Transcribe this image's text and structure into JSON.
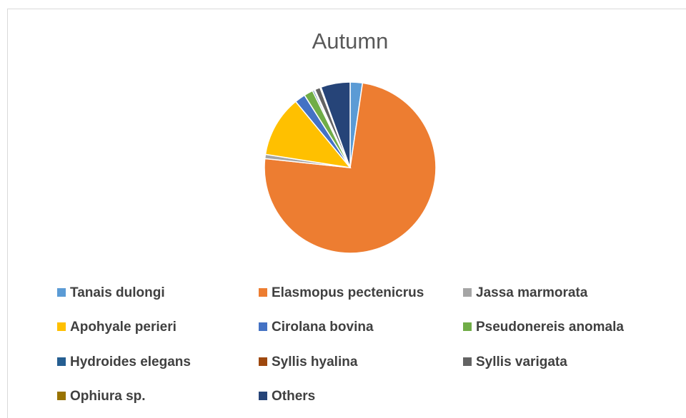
{
  "chart_data": {
    "type": "pie",
    "title": "Autumn",
    "categories": [
      "Tanais dulongi",
      "Elasmopus pectenicrus",
      "Jassa marmorata",
      "Apohyale perieri",
      "Cirolana bovina",
      "Pseudonereis anomala",
      "Hydroides elegans",
      "Syllis hyalina",
      "Syllis varigata",
      "Ophiura sp.",
      "Others"
    ],
    "values": [
      2.3,
      74,
      0.8,
      11.5,
      2,
      1.7,
      0.3,
      0.2,
      1,
      0.2,
      5.5
    ],
    "colors": [
      "#5b9bd5",
      "#ed7d31",
      "#a5a5a5",
      "#ffc000",
      "#4472c4",
      "#70ad47",
      "#255e91",
      "#9e480e",
      "#636363",
      "#997300",
      "#264478"
    ],
    "legend": "bottom"
  }
}
